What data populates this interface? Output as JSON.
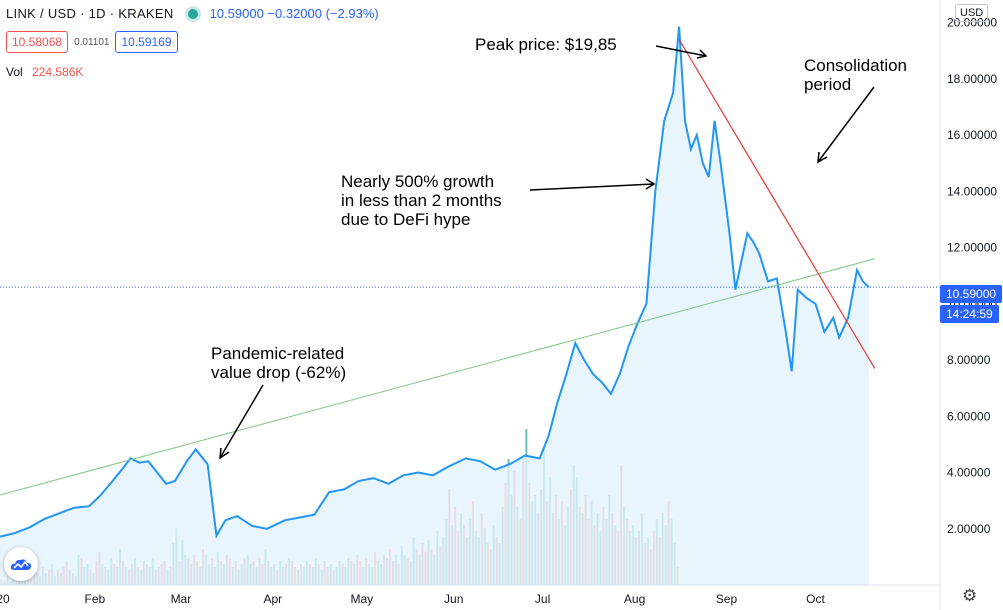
{
  "header": {
    "symbol": "LINK / USD · 1D · KRAKEN",
    "price_change": "10.59000 −0.32000 (−2.93%)",
    "bid": "10.58068",
    "spread": "0.01101",
    "ask": "10.59169",
    "vol_label": "Vol",
    "vol_value": "224.586K",
    "currency": "USD"
  },
  "price_tag": "10.59000",
  "timer_tag": "14:24:59",
  "annotations": {
    "peak": "Peak price: $19,85",
    "consolidation": "Consolidation\nperiod",
    "growth": "Nearly 500% growth\nin less than 2 months\ndue to DeFi hype",
    "pandemic": "Pandemic-related\nvalue drop (-62%)"
  },
  "colors": {
    "line": "#2196f3",
    "area": "#e3f2fd",
    "vol_up": "#26a69a",
    "vol_down": "#ef5350",
    "trend_up": "#81c784",
    "trend_down": "#e53935",
    "accent": "#2962ff"
  },
  "chart_data": {
    "type": "area",
    "title": "LINK / USD · 1D · KRAKEN",
    "xlabel": "",
    "ylabel": "",
    "x_ticks": [
      "20",
      "Feb",
      "Mar",
      "Apr",
      "May",
      "Jun",
      "Jul",
      "Aug",
      "Sep",
      "Oct"
    ],
    "y_ticks": [
      "2.00000",
      "4.00000",
      "6.00000",
      "8.00000",
      "10.00000",
      "12.00000",
      "14.00000",
      "16.00000",
      "18.00000",
      "20.00000"
    ],
    "ylim": [
      0,
      20.8
    ],
    "xlim": [
      "2019-12-31",
      "2020-11-12"
    ],
    "x_tick_dates": [
      "2020-01-01",
      "2020-02-01",
      "2020-03-01",
      "2020-04-01",
      "2020-05-01",
      "2020-06-01",
      "2020-07-01",
      "2020-08-01",
      "2020-09-01",
      "2020-10-01"
    ],
    "grid": false,
    "series": [
      {
        "values": [
          [
            "2019-12-31",
            1.72
          ],
          [
            "2020-01-05",
            1.85
          ],
          [
            "2020-01-10",
            2.05
          ],
          [
            "2020-01-15",
            2.35
          ],
          [
            "2020-01-20",
            2.55
          ],
          [
            "2020-01-25",
            2.75
          ],
          [
            "2020-01-30",
            2.8
          ],
          [
            "2020-02-03",
            3.2
          ],
          [
            "2020-02-07",
            3.7
          ],
          [
            "2020-02-10",
            4.1
          ],
          [
            "2020-02-13",
            4.5
          ],
          [
            "2020-02-16",
            4.35
          ],
          [
            "2020-02-19",
            4.4
          ],
          [
            "2020-02-22",
            4.0
          ],
          [
            "2020-02-25",
            3.6
          ],
          [
            "2020-02-28",
            3.7
          ],
          [
            "2020-03-03",
            4.4
          ],
          [
            "2020-03-06",
            4.82
          ],
          [
            "2020-03-10",
            4.3
          ],
          [
            "2020-03-12",
            2.6
          ],
          [
            "2020-03-13",
            1.75
          ],
          [
            "2020-03-16",
            2.3
          ],
          [
            "2020-03-20",
            2.45
          ],
          [
            "2020-03-25",
            2.1
          ],
          [
            "2020-03-30",
            2.0
          ],
          [
            "2020-04-05",
            2.3
          ],
          [
            "2020-04-10",
            2.4
          ],
          [
            "2020-04-15",
            2.5
          ],
          [
            "2020-04-20",
            3.3
          ],
          [
            "2020-04-25",
            3.4
          ],
          [
            "2020-04-30",
            3.7
          ],
          [
            "2020-05-05",
            3.8
          ],
          [
            "2020-05-10",
            3.6
          ],
          [
            "2020-05-15",
            3.9
          ],
          [
            "2020-05-20",
            4.0
          ],
          [
            "2020-05-25",
            3.9
          ],
          [
            "2020-05-30",
            4.2
          ],
          [
            "2020-06-05",
            4.5
          ],
          [
            "2020-06-10",
            4.4
          ],
          [
            "2020-06-15",
            4.1
          ],
          [
            "2020-06-20",
            4.3
          ],
          [
            "2020-06-25",
            4.6
          ],
          [
            "2020-06-30",
            4.5
          ],
          [
            "2020-07-03",
            5.3
          ],
          [
            "2020-07-06",
            6.5
          ],
          [
            "2020-07-09",
            7.5
          ],
          [
            "2020-07-12",
            8.6
          ],
          [
            "2020-07-15",
            8.0
          ],
          [
            "2020-07-18",
            7.5
          ],
          [
            "2020-07-21",
            7.2
          ],
          [
            "2020-07-24",
            6.8
          ],
          [
            "2020-07-27",
            7.5
          ],
          [
            "2020-07-30",
            8.5
          ],
          [
            "2020-08-02",
            9.3
          ],
          [
            "2020-08-05",
            10.0
          ],
          [
            "2020-08-08",
            14.0
          ],
          [
            "2020-08-11",
            16.5
          ],
          [
            "2020-08-14",
            17.5
          ],
          [
            "2020-08-16",
            19.85
          ],
          [
            "2020-08-18",
            16.5
          ],
          [
            "2020-08-20",
            15.5
          ],
          [
            "2020-08-22",
            16.0
          ],
          [
            "2020-08-24",
            15.0
          ],
          [
            "2020-08-26",
            14.5
          ],
          [
            "2020-08-28",
            16.5
          ],
          [
            "2020-08-30",
            15.0
          ],
          [
            "2020-09-02",
            12.5
          ],
          [
            "2020-09-04",
            10.5
          ],
          [
            "2020-09-06",
            11.5
          ],
          [
            "2020-09-08",
            12.5
          ],
          [
            "2020-09-10",
            12.2
          ],
          [
            "2020-09-12",
            11.8
          ],
          [
            "2020-09-15",
            10.8
          ],
          [
            "2020-09-18",
            10.9
          ],
          [
            "2020-09-21",
            9.0
          ],
          [
            "2020-09-23",
            7.6
          ],
          [
            "2020-09-25",
            10.5
          ],
          [
            "2020-09-28",
            10.2
          ],
          [
            "2020-10-01",
            10.0
          ],
          [
            "2020-10-04",
            9.0
          ],
          [
            "2020-10-07",
            9.5
          ],
          [
            "2020-10-09",
            8.8
          ],
          [
            "2020-10-12",
            9.5
          ],
          [
            "2020-10-15",
            11.2
          ],
          [
            "2020-10-17",
            10.8
          ],
          [
            "2020-10-19",
            10.59
          ]
        ]
      }
    ],
    "volume": [
      0.2,
      0.15,
      0.3,
      0.1,
      0.25,
      0.35,
      0.2,
      0.4,
      0.3,
      0.25,
      0.2,
      0.5,
      0.4,
      0.3,
      0.6,
      0.4,
      0.5,
      0.7,
      0.3,
      0.5,
      0.4,
      0.6,
      0.8,
      0.5,
      0.4,
      0.3,
      1.0,
      0.9,
      0.6,
      0.7,
      0.5,
      0.4,
      0.8,
      1.1,
      0.7,
      0.6,
      0.5,
      0.9,
      0.7,
      0.6,
      1.2,
      0.8,
      0.6,
      0.5,
      0.7,
      0.9,
      0.6,
      0.5,
      0.8,
      0.7,
      0.6,
      0.9,
      0.5,
      0.6,
      0.7,
      0.8,
      0.5,
      0.6,
      1.4,
      1.9,
      0.8,
      1.5,
      1.0,
      0.9,
      0.7,
      1.0,
      0.8,
      0.6,
      1.2,
      1.0,
      0.7,
      0.9,
      0.6,
      1.1,
      0.8,
      0.7,
      1.0,
      0.9,
      0.6,
      0.8,
      0.5,
      0.7,
      0.9,
      1.0,
      0.7,
      0.8,
      0.6,
      0.9,
      0.7,
      1.2,
      0.8,
      0.6,
      0.7,
      0.5,
      0.8,
      0.6,
      0.7,
      0.9,
      0.8,
      0.6,
      0.5,
      0.7,
      0.6,
      0.8,
      0.7,
      0.6,
      0.9,
      0.7,
      0.5,
      0.8,
      0.6,
      0.7,
      0.5,
      0.6,
      0.8,
      0.7,
      0.6,
      0.9,
      0.8,
      0.7,
      1.0,
      0.8,
      0.6,
      0.9,
      0.7,
      0.6,
      1.1,
      0.8,
      0.7,
      1.0,
      0.9,
      1.2,
      0.8,
      1.0,
      0.7,
      1.3,
      1.0,
      0.9,
      0.8,
      1.6,
      1.2,
      1.0,
      1.4,
      1.1,
      1.5,
      1.2,
      1.0,
      1.8,
      1.3,
      1.6,
      2.2,
      3.2,
      2.0,
      2.6,
      1.8,
      2.4,
      2.0,
      1.6,
      2.2,
      2.8,
      1.8,
      1.6,
      2.4,
      1.9,
      1.4,
      1.2,
      2.0,
      1.6,
      1.4,
      2.6,
      3.4,
      4.2,
      3.0,
      3.8,
      2.6,
      2.2,
      4.2,
      5.2,
      3.4,
      2.8,
      3.0,
      2.4,
      3.2,
      4.6,
      2.8,
      3.6,
      2.4,
      3.0,
      2.2,
      2.8,
      2.0,
      2.6,
      3.2,
      4.0,
      3.6,
      2.6,
      2.4,
      3.0,
      2.2,
      2.8,
      2.0,
      2.4,
      1.8,
      2.6,
      2.2,
      3.0,
      2.4,
      2.0,
      1.8,
      4.0,
      2.6,
      2.2,
      1.8,
      2.0,
      1.6,
      1.8,
      2.4,
      1.4,
      1.6,
      1.2,
      1.8,
      2.2,
      1.6,
      2.4,
      2.0,
      2.8,
      2.2,
      1.4,
      0.6
    ],
    "trendlines": [
      {
        "from": [
          "2019-12-31",
          3.2
        ],
        "to": [
          "2020-10-21",
          11.6
        ]
      },
      {
        "from": [
          "2020-08-16",
          19.4
        ],
        "to": [
          "2020-10-21",
          7.7
        ]
      }
    ],
    "last_price": 10.59
  }
}
